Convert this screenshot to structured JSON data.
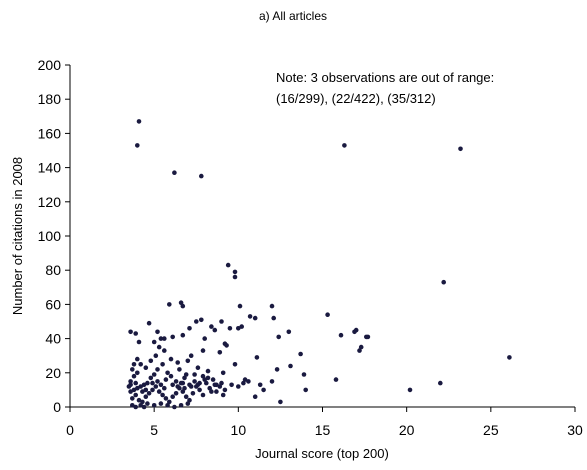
{
  "chart_data": {
    "type": "scatter",
    "title": "a) All articles",
    "xlabel": "Journal score (top 200)",
    "ylabel": "Number of citations in 2008",
    "xlim": [
      0,
      30
    ],
    "ylim": [
      0,
      200
    ],
    "xticks": [
      "0",
      "5",
      "10",
      "15",
      "20",
      "25",
      "30"
    ],
    "yticks": [
      "0",
      "20",
      "40",
      "60",
      "80",
      "100",
      "120",
      "140",
      "160",
      "180",
      "200"
    ],
    "grid": false,
    "legend": "none",
    "annotation": {
      "line1": "Note: 3 observations are out of range:",
      "line2": "(16/299), (22/422), (35/312)"
    },
    "marker_color": "#1a1a40",
    "points": [
      [
        4.1,
        167
      ],
      [
        4.0,
        153
      ],
      [
        6.2,
        137
      ],
      [
        7.8,
        135
      ],
      [
        16.3,
        153
      ],
      [
        23.2,
        151
      ],
      [
        9.4,
        83
      ],
      [
        9.8,
        79
      ],
      [
        9.8,
        76
      ],
      [
        22.2,
        73
      ],
      [
        10.0,
        46
      ],
      [
        26.1,
        29
      ],
      [
        3.6,
        44
      ],
      [
        3.9,
        43
      ],
      [
        4.1,
        38
      ],
      [
        4.7,
        49
      ],
      [
        5.4,
        40
      ],
      [
        5.6,
        40
      ],
      [
        5.9,
        60
      ],
      [
        6.1,
        41
      ],
      [
        6.6,
        61
      ],
      [
        6.7,
        59
      ],
      [
        7.5,
        50
      ],
      [
        7.8,
        51
      ],
      [
        8.4,
        47
      ],
      [
        8.6,
        45
      ],
      [
        9.0,
        50
      ],
      [
        9.5,
        46
      ],
      [
        10.1,
        59
      ],
      [
        10.7,
        53
      ],
      [
        11.0,
        52
      ],
      [
        11.1,
        29
      ],
      [
        12.0,
        59
      ],
      [
        12.1,
        52
      ],
      [
        13.0,
        44
      ],
      [
        13.7,
        31
      ],
      [
        15.3,
        54
      ],
      [
        15.8,
        16
      ],
      [
        16.1,
        42
      ],
      [
        16.9,
        44
      ],
      [
        17.0,
        45
      ],
      [
        17.2,
        33
      ],
      [
        17.3,
        35
      ],
      [
        17.6,
        41
      ],
      [
        17.7,
        41
      ],
      [
        20.2,
        10
      ],
      [
        22.0,
        14
      ],
      [
        11.3,
        13
      ],
      [
        12.3,
        22
      ],
      [
        12.5,
        3
      ],
      [
        13.1,
        24
      ],
      [
        13.9,
        19
      ],
      [
        14.0,
        10
      ],
      [
        8.9,
        32
      ],
      [
        9.3,
        36
      ],
      [
        9.8,
        25
      ],
      [
        10.3,
        14
      ],
      [
        10.6,
        15
      ],
      [
        9.1,
        20
      ],
      [
        8.7,
        13
      ],
      [
        7.9,
        33
      ],
      [
        7.7,
        14
      ],
      [
        7.2,
        30
      ],
      [
        7.0,
        27
      ],
      [
        6.9,
        19
      ],
      [
        6.7,
        14
      ],
      [
        6.4,
        26
      ],
      [
        6.0,
        28
      ],
      [
        5.7,
        16
      ],
      [
        5.5,
        25
      ],
      [
        5.2,
        22
      ],
      [
        5.0,
        19
      ],
      [
        4.8,
        17
      ],
      [
        4.6,
        14
      ],
      [
        4.4,
        13
      ],
      [
        4.2,
        12
      ],
      [
        4.0,
        11
      ],
      [
        3.8,
        10
      ],
      [
        3.6,
        9
      ],
      [
        3.7,
        5
      ],
      [
        3.9,
        7
      ],
      [
        4.1,
        4
      ],
      [
        4.3,
        3
      ],
      [
        4.5,
        6
      ],
      [
        4.7,
        8
      ],
      [
        4.9,
        10
      ],
      [
        5.1,
        12
      ],
      [
        5.3,
        9
      ],
      [
        5.5,
        7
      ],
      [
        5.7,
        5
      ],
      [
        5.9,
        3
      ],
      [
        6.1,
        6
      ],
      [
        6.3,
        8
      ],
      [
        6.5,
        11
      ],
      [
        6.7,
        9
      ],
      [
        6.9,
        6
      ],
      [
        7.1,
        4
      ],
      [
        7.3,
        8
      ],
      [
        7.5,
        12
      ],
      [
        7.7,
        10
      ],
      [
        7.9,
        7
      ],
      [
        8.1,
        14
      ],
      [
        8.3,
        11
      ],
      [
        8.5,
        16
      ],
      [
        8.7,
        9
      ],
      [
        8.9,
        12
      ],
      [
        9.1,
        7
      ],
      [
        3.7,
        1
      ],
      [
        3.9,
        0
      ],
      [
        4.2,
        1
      ],
      [
        4.4,
        0
      ],
      [
        4.6,
        2
      ],
      [
        5.0,
        1
      ],
      [
        5.4,
        2
      ],
      [
        5.8,
        1
      ],
      [
        6.2,
        0
      ],
      [
        6.6,
        1
      ],
      [
        7.0,
        2
      ],
      [
        3.6,
        15
      ],
      [
        3.8,
        18
      ],
      [
        3.7,
        22
      ],
      [
        4.0,
        20
      ],
      [
        4.2,
        25
      ],
      [
        4.5,
        23
      ],
      [
        4.8,
        27
      ],
      [
        5.1,
        30
      ],
      [
        5.3,
        35
      ],
      [
        5.6,
        33
      ],
      [
        5.8,
        20
      ],
      [
        6.0,
        18
      ],
      [
        6.3,
        15
      ],
      [
        6.5,
        22
      ],
      [
        6.8,
        17
      ],
      [
        7.1,
        13
      ],
      [
        7.4,
        19
      ],
      [
        7.6,
        23
      ],
      [
        8.0,
        16
      ],
      [
        8.2,
        21
      ],
      [
        8.4,
        9
      ],
      [
        3.5,
        12
      ],
      [
        3.6,
        13
      ],
      [
        3.9,
        14
      ],
      [
        4.3,
        9
      ],
      [
        4.5,
        10
      ],
      [
        4.9,
        14
      ],
      [
        5.2,
        15
      ],
      [
        5.4,
        13
      ],
      [
        5.6,
        11
      ],
      [
        6.1,
        13
      ],
      [
        6.4,
        12
      ],
      [
        6.6,
        14
      ],
      [
        6.8,
        11
      ],
      [
        7.2,
        12
      ],
      [
        7.4,
        15
      ],
      [
        7.6,
        13
      ],
      [
        7.9,
        18
      ],
      [
        8.2,
        17
      ],
      [
        8.6,
        13
      ],
      [
        9.0,
        14
      ],
      [
        9.2,
        10
      ],
      [
        9.6,
        13
      ],
      [
        10.0,
        12
      ],
      [
        10.4,
        16
      ],
      [
        11.0,
        6
      ],
      [
        11.5,
        10
      ],
      [
        12.0,
        15
      ],
      [
        3.8,
        25
      ],
      [
        4.0,
        28
      ],
      [
        5.0,
        38
      ],
      [
        5.2,
        44
      ],
      [
        6.7,
        42
      ],
      [
        7.1,
        46
      ],
      [
        8.0,
        40
      ],
      [
        9.2,
        37
      ],
      [
        10.2,
        47
      ],
      [
        12.4,
        41
      ]
    ]
  }
}
